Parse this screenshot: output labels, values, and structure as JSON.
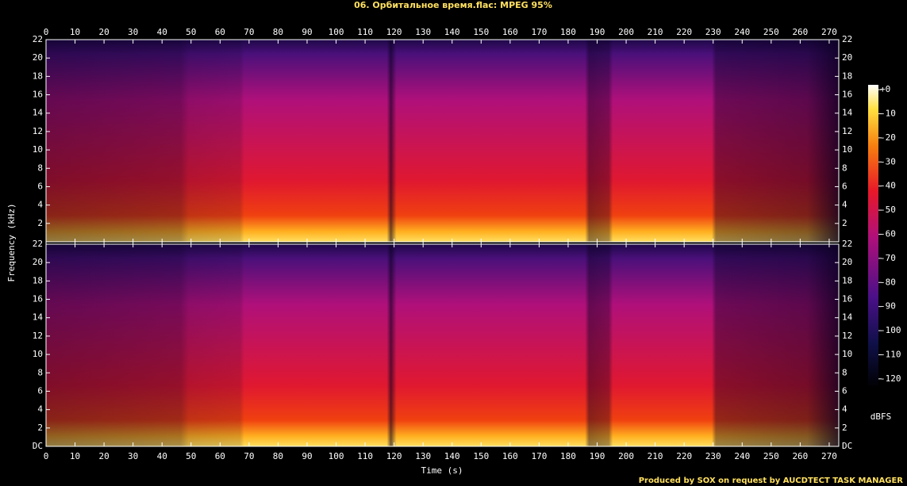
{
  "chart_data": {
    "type": "spectrogram",
    "title": "06. Орбитальное время.flac: MPEG 95%",
    "x_label": "Time (s)",
    "y_label": "Frequency (kHz)",
    "xlim": [
      0,
      273.3
    ],
    "xticks": [
      0,
      10,
      20,
      30,
      40,
      50,
      60,
      70,
      80,
      90,
      100,
      110,
      120,
      130,
      140,
      150,
      160,
      170,
      180,
      190,
      200,
      210,
      220,
      230,
      240,
      250,
      260,
      270
    ],
    "panels": [
      {
        "ylim": [
          0,
          22
        ],
        "yticks": [
          2,
          4,
          6,
          8,
          10,
          12,
          14,
          16,
          18,
          20,
          22
        ]
      },
      {
        "ylim": [
          0,
          22
        ],
        "yticks": [
          {
            "value": 0,
            "label": "DC"
          },
          2,
          4,
          6,
          8,
          10,
          12,
          14,
          16,
          18,
          20,
          22
        ]
      }
    ],
    "colorbar": {
      "label": "dBFS",
      "lim": [
        -124,
        2
      ],
      "ticks": [
        {
          "value": 0,
          "label": "+0"
        },
        -10,
        -20,
        -30,
        -40,
        -50,
        -60,
        -70,
        -80,
        -90,
        -100,
        -110,
        -120
      ]
    },
    "footer": "Produced by SOX on request by AUCDTECT TASK MANAGER"
  }
}
